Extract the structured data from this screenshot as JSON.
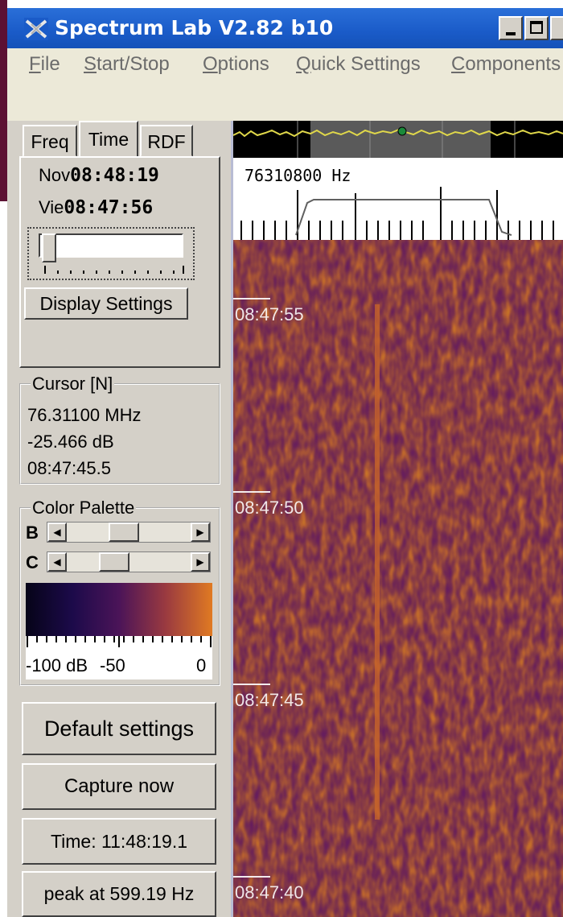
{
  "window": {
    "title": "Spectrum Lab V2.82 b10",
    "buttons": [
      "minimize",
      "maximize"
    ]
  },
  "menu": {
    "items": [
      {
        "first": "F",
        "rest": "ile"
      },
      {
        "first": "S",
        "rest": "tart/Stop"
      },
      {
        "first": "O",
        "rest": "ptions"
      },
      {
        "first": "Q",
        "rest": "uick Settings"
      },
      {
        "first": "C",
        "rest": "omponents"
      }
    ]
  },
  "tabs": [
    "Freq",
    "Time",
    "RDF"
  ],
  "active_tab": "Time",
  "time_panel": {
    "now_label": "Nov",
    "now_value": "08:48:19",
    "view_label": "Vie",
    "view_value": "08:47:56",
    "display_settings_label": "Display Settings"
  },
  "cursor": {
    "title": "Cursor [N]",
    "frequency": "76.31100 MHz",
    "level": "-25.466 dB",
    "time": "08:47:45.5"
  },
  "palette": {
    "title": "Color Palette",
    "b_label": "B",
    "c_label": "C",
    "scale_labels": [
      "-100 dB",
      "-50",
      "0"
    ],
    "gradient": [
      "#060418",
      "#1c0a4a",
      "#4b1458",
      "#9a3a40",
      "#e07a22"
    ]
  },
  "buttons": {
    "default_settings": "Default settings",
    "capture_now": "Capture now",
    "time_readout": "Time:  11:48:19.1",
    "peak_readout": "peak at 599.19 Hz"
  },
  "spectrum": {
    "frequency_label": "76310800 Hz"
  },
  "waterfall": {
    "time_marks": [
      "08:47:55",
      "08:47:50",
      "08:47:45",
      "08:47:40"
    ],
    "colors": {
      "base": "#6a1a66",
      "hot": "#c8642a"
    }
  }
}
